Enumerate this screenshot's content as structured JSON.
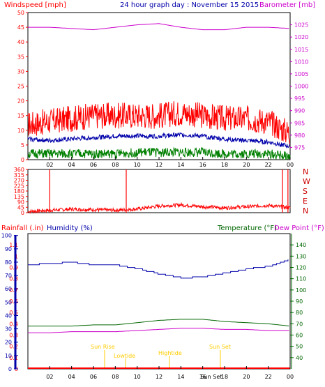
{
  "header": {
    "windspeed": "Windspeed [mph]",
    "date": "24 hour graph day : November 15 2015",
    "barometer": "Barometer [mb]"
  },
  "lower_header": {
    "rainfall": "Rainfall (.in)",
    "humidity": "Humidity (%)",
    "temperature": "Temperature (°F)",
    "dewpoint": "Dew Point (°F)"
  },
  "direction_labels": [
    "N",
    "W",
    "S",
    "E",
    "N"
  ],
  "x_ticks": [
    "02",
    "04",
    "06",
    "08",
    "10",
    "12",
    "14",
    "16",
    "18",
    "20",
    "22",
    "00"
  ],
  "annotations": {
    "sunrise": "Sun Rise",
    "lowtide": "Lowtide",
    "hightide": "Hightide",
    "sunset": "Sun Set",
    "sunset2": "Sun Set"
  },
  "colors": {
    "wind": "#ff0000",
    "avg_wind": "#0000aa",
    "low_wind": "#008000",
    "barometer": "#cc00cc",
    "rain": "#ff0000",
    "humidity": "#0000aa",
    "temperature": "#006600",
    "dewpoint": "#cc00cc",
    "annotation": "#ffcc00"
  },
  "chart_data": [
    {
      "type": "line",
      "title": "24 hour graph day : November 15 2015",
      "ylabel": "Windspeed [mph]",
      "y2label": "Barometer [mb]",
      "ylim": [
        0,
        50
      ],
      "y2lim": [
        970,
        1030
      ],
      "y_ticks": [
        0,
        5,
        10,
        15,
        20,
        25,
        30,
        35,
        40,
        45,
        50
      ],
      "y2_ticks": [
        975,
        980,
        985,
        990,
        995,
        1000,
        1005,
        1010,
        1015,
        1020,
        1025
      ],
      "x": [
        0,
        2,
        4,
        6,
        8,
        10,
        12,
        14,
        16,
        18,
        20,
        22,
        24
      ],
      "series": [
        {
          "key": "gust",
          "values": [
            12,
            13,
            14,
            15,
            15,
            15,
            15,
            16,
            15,
            14,
            14,
            13,
            9
          ]
        },
        {
          "key": "avg",
          "values": [
            7,
            6.5,
            7,
            7.5,
            8,
            8,
            8,
            8.5,
            8,
            7,
            6.5,
            6,
            4.5
          ]
        },
        {
          "key": "low",
          "values": [
            2,
            2,
            2,
            2,
            2,
            2.5,
            2.5,
            2.5,
            2.5,
            2,
            2,
            2,
            1
          ]
        },
        {
          "key": "barometer",
          "values": [
            1024,
            1024,
            1023.5,
            1023,
            1024,
            1025,
            1025.5,
            1024,
            1023,
            1023,
            1024,
            1024,
            1023.5
          ]
        }
      ]
    },
    {
      "type": "line",
      "ylim": [
        0,
        360
      ],
      "y_ticks": [
        0,
        45,
        90,
        135,
        180,
        225,
        270,
        315,
        360
      ],
      "x": [
        0,
        2,
        4,
        6,
        8,
        10,
        12,
        14,
        16,
        18,
        20,
        22,
        24
      ],
      "series": [
        {
          "key": "direction",
          "values": [
            10,
            20,
            30,
            25,
            20,
            30,
            55,
            65,
            50,
            40,
            50,
            60,
            40
          ]
        }
      ],
      "spikes": [
        2,
        9,
        23.3,
        23.8
      ]
    },
    {
      "type": "line",
      "ylim": [
        0,
        1.2
      ],
      "y_ticks": [
        0,
        0.1,
        0.2,
        0.3,
        0.4,
        0.5,
        0.6,
        0.7,
        0.8,
        0.9,
        1,
        1.1
      ],
      "y2lim": [
        0,
        100
      ],
      "y2_ticks": [
        0,
        10,
        20,
        30,
        40,
        50,
        60,
        70,
        80,
        90,
        100
      ],
      "y3lim": [
        30,
        150
      ],
      "y3_ticks": [
        40,
        50,
        60,
        70,
        80,
        90,
        100,
        110,
        120,
        130,
        140
      ],
      "x": [
        0,
        2,
        4,
        6,
        8,
        10,
        12,
        14,
        16,
        18,
        20,
        22,
        24
      ],
      "series": [
        {
          "key": "humidity",
          "axis": "humidity",
          "values": [
            78,
            79,
            80,
            78,
            78,
            75,
            71,
            68,
            69,
            72,
            75,
            77,
            82
          ]
        },
        {
          "key": "temperature",
          "axis": "temp",
          "values": [
            68,
            68,
            68,
            69,
            69,
            71,
            73,
            74,
            74,
            72,
            71,
            70,
            68
          ]
        },
        {
          "key": "dewpoint",
          "axis": "temp",
          "values": [
            62,
            62,
            63,
            63,
            63,
            64,
            65,
            66,
            66,
            65,
            65,
            64,
            64
          ]
        },
        {
          "key": "rainfall",
          "axis": "rain",
          "values": [
            0,
            0,
            0,
            0,
            0,
            0,
            0,
            0,
            0,
            0,
            0,
            0,
            0
          ]
        }
      ]
    }
  ]
}
